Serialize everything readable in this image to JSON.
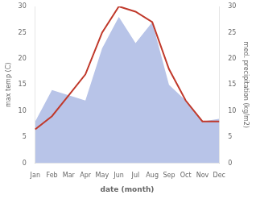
{
  "chart_data": {
    "type": "line",
    "categories": [
      "Jan",
      "Feb",
      "Mar",
      "Apr",
      "May",
      "Jun",
      "Jul",
      "Aug",
      "Sep",
      "Oct",
      "Nov",
      "Dec"
    ],
    "series": [
      {
        "type": "area",
        "color": "#b8c4e8",
        "axis": "y2",
        "values": [
          8.0,
          14.0,
          13.0,
          12.0,
          22.0,
          28.0,
          23.0,
          27.0,
          15.0,
          12.0,
          8.0,
          8.5
        ]
      },
      {
        "type": "line",
        "color": "#c0392b",
        "axis": "y",
        "values": [
          6.5,
          9.0,
          13.0,
          17.0,
          25.0,
          30.0,
          29.0,
          27.0,
          18.0,
          12.0,
          8.0,
          8.0
        ]
      }
    ],
    "xlabel": "date (month)",
    "ylabel": "max temp (C)",
    "y2label": "med. precipitation (kg/m2)",
    "ylim": [
      0,
      30
    ],
    "yticks": [
      0,
      5,
      10,
      15,
      20,
      25,
      30
    ],
    "y2lim": [
      0,
      30
    ],
    "y2ticks": [
      0,
      5,
      10,
      15,
      20,
      25,
      30
    ],
    "grid": false,
    "legend": false
  }
}
